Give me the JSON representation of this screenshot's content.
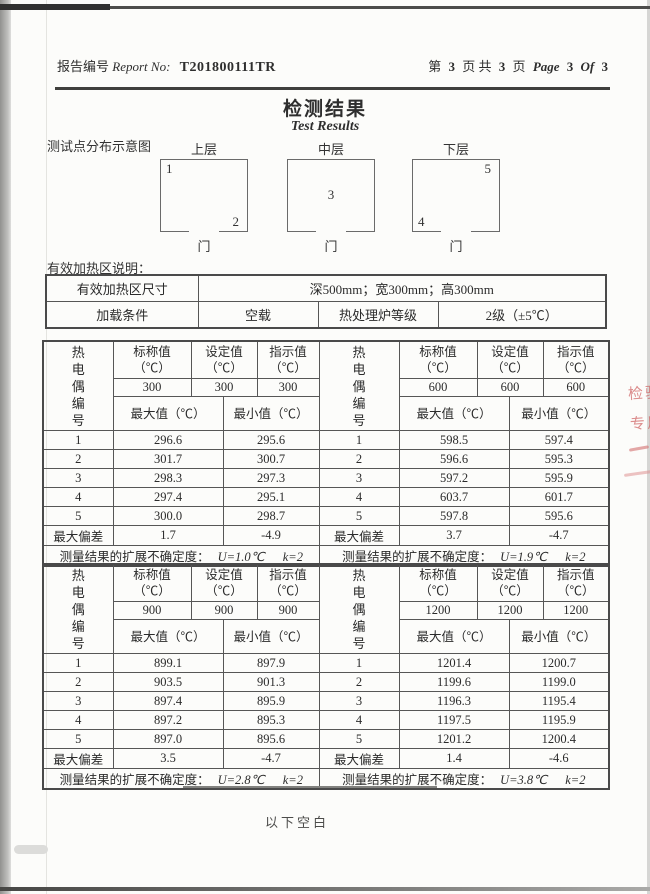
{
  "header": {
    "report_label_zh": "报告编号",
    "report_label_en": "Report No:",
    "report_no": "T201800111TR",
    "page_prefix": "第",
    "page_current": "3",
    "page_mid": "页 共",
    "page_total": "3",
    "page_suffix": "页",
    "page_en_word": "Page",
    "page_en_current": "3",
    "page_en_of": "Of",
    "page_en_total": "3"
  },
  "title": {
    "zh": "检测结果",
    "en": "Test Results"
  },
  "diagram": {
    "caption": "测试点分布示意图",
    "door_label": "门",
    "layers": [
      {
        "label": "上层",
        "points": [
          {
            "n": "1",
            "pos": "top-left"
          },
          {
            "n": "2",
            "pos": "bottom-right"
          }
        ]
      },
      {
        "label": "中层",
        "points": [
          {
            "n": "3",
            "pos": "center"
          }
        ]
      },
      {
        "label": "下层",
        "points": [
          {
            "n": "5",
            "pos": "top-right"
          },
          {
            "n": "4",
            "pos": "bottom-left"
          }
        ]
      }
    ]
  },
  "heating_zone": {
    "caption": "有效加热区说明：",
    "size_label": "有效加热区尺寸",
    "size_value": "深500mm；宽300mm；高300mm",
    "load_label": "加载条件",
    "load_value": "空载",
    "grade_label": "热处理炉等级",
    "grade_value": "2级（±5℃）"
  },
  "measurement": {
    "col_headers": {
      "tc": "热电偶编号",
      "nominal": "标称值",
      "set_value": "设定值",
      "indicated": "指示值",
      "unit": "（℃）",
      "max": "最大值（℃）",
      "min": "最小值（℃）",
      "deviation": "最大偏差",
      "uncertainty": "测量结果的扩展不确定度："
    },
    "tables": [
      {
        "temp": "300",
        "rows": [
          [
            "1",
            "296.6",
            "295.6"
          ],
          [
            "2",
            "301.7",
            "300.7"
          ],
          [
            "3",
            "298.3",
            "297.3"
          ],
          [
            "4",
            "297.4",
            "295.1"
          ],
          [
            "5",
            "300.0",
            "298.7"
          ]
        ],
        "deviation_max": "1.7",
        "deviation_min": "-4.9",
        "uncertainty_u": "U=1.0℃",
        "uncertainty_k": "k=2"
      },
      {
        "temp": "600",
        "rows": [
          [
            "1",
            "598.5",
            "597.4"
          ],
          [
            "2",
            "596.6",
            "595.3"
          ],
          [
            "3",
            "597.2",
            "595.9"
          ],
          [
            "4",
            "603.7",
            "601.7"
          ],
          [
            "5",
            "597.8",
            "595.6"
          ]
        ],
        "deviation_max": "3.7",
        "deviation_min": "-4.7",
        "uncertainty_u": "U=1.9℃",
        "uncertainty_k": "k=2"
      },
      {
        "temp": "900",
        "rows": [
          [
            "1",
            "899.1",
            "897.9"
          ],
          [
            "2",
            "903.5",
            "901.3"
          ],
          [
            "3",
            "897.4",
            "895.9"
          ],
          [
            "4",
            "897.2",
            "895.3"
          ],
          [
            "5",
            "897.0",
            "895.6"
          ]
        ],
        "deviation_max": "3.5",
        "deviation_min": "-4.7",
        "uncertainty_u": "U=2.8℃",
        "uncertainty_k": "k=2"
      },
      {
        "temp": "1200",
        "rows": [
          [
            "1",
            "1201.4",
            "1200.7"
          ],
          [
            "2",
            "1199.6",
            "1199.0"
          ],
          [
            "3",
            "1196.3",
            "1195.4"
          ],
          [
            "4",
            "1197.5",
            "1195.9"
          ],
          [
            "5",
            "1201.2",
            "1200.4"
          ]
        ],
        "deviation_max": "1.4",
        "deviation_min": "-4.6",
        "uncertainty_u": "U=3.8℃",
        "uncertainty_k": "k=2"
      }
    ]
  },
  "footer": {
    "blank_note": "以下空白"
  },
  "stamp": {
    "fragment_top": "检验",
    "fragment_bottom": "专用"
  }
}
